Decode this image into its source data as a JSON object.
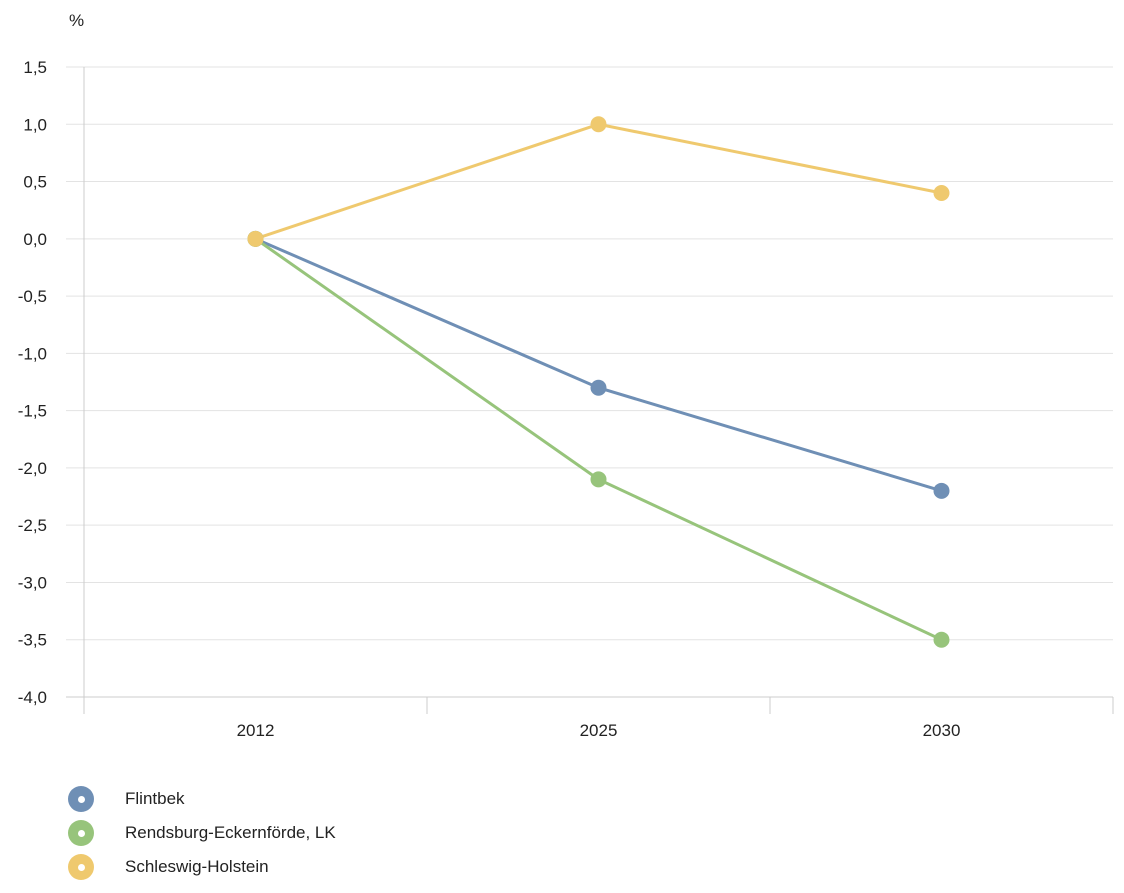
{
  "chart_data": {
    "type": "line",
    "unit_label": "%",
    "categories": [
      "2012",
      "2025",
      "2030"
    ],
    "y_ticks": [
      "1,5",
      "1,0",
      "0,5",
      "0,0",
      "-0,5",
      "-1,0",
      "-1,5",
      "-2,0",
      "-2,5",
      "-3,0",
      "-3,5",
      "-4,0"
    ],
    "y_tick_values": [
      1.5,
      1.0,
      0.5,
      0.0,
      -0.5,
      -1.0,
      -1.5,
      -2.0,
      -2.5,
      -3.0,
      -3.5,
      -4.0
    ],
    "ylim": [
      -4.0,
      1.5
    ],
    "grid": true,
    "legend_position": "bottom-left",
    "series": [
      {
        "name": "Flintbek",
        "color": "#6f8fb5",
        "values": [
          0.0,
          -1.3,
          -2.2
        ]
      },
      {
        "name": "Rendsburg-Eckernförde, LK",
        "color": "#97c47b",
        "values": [
          0.0,
          -2.1,
          -3.5
        ]
      },
      {
        "name": "Schleswig-Holstein",
        "color": "#efc96e",
        "values": [
          0.0,
          1.0,
          0.4
        ]
      }
    ]
  }
}
